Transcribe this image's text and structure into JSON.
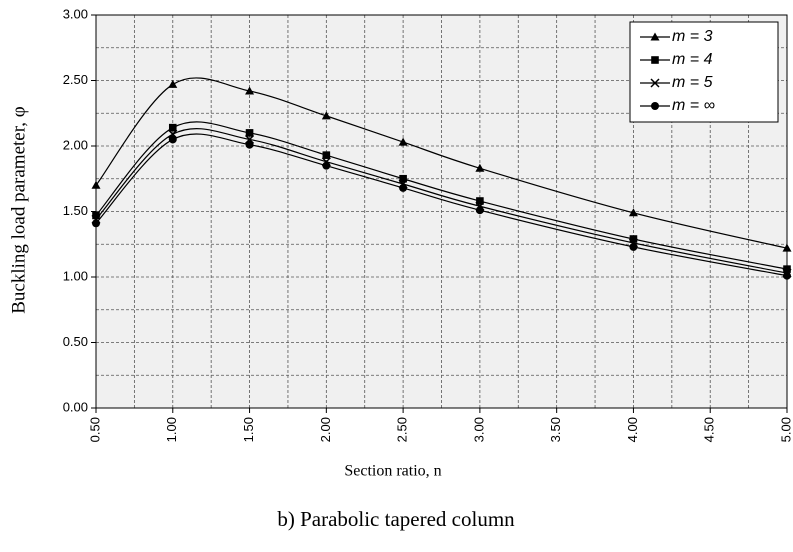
{
  "chart_data": {
    "type": "line",
    "xlabel": "Section ratio, n",
    "ylabel": "Buckling load parameter, φ",
    "caption": "b) Parabolic tapered column",
    "x": [
      0.5,
      1,
      1.5,
      2,
      2.5,
      3,
      4,
      5
    ],
    "series": [
      {
        "name": "m = 3",
        "color": "#000000",
        "marker": "triangle",
        "values": [
          1.7,
          2.47,
          2.42,
          2.23,
          2.03,
          1.83,
          1.49,
          1.22
        ]
      },
      {
        "name": "m = 4",
        "color": "#000000",
        "marker": "square",
        "values": [
          1.47,
          2.14,
          2.1,
          1.93,
          1.75,
          1.58,
          1.29,
          1.06
        ]
      },
      {
        "name": "m = 5",
        "color": "#000000",
        "marker": "x",
        "values": [
          1.44,
          2.09,
          2.05,
          1.88,
          1.71,
          1.54,
          1.26,
          1.03
        ]
      },
      {
        "name": "m = ∞",
        "color": "#000000",
        "marker": "circle",
        "values": [
          1.41,
          2.05,
          2.01,
          1.85,
          1.68,
          1.51,
          1.23,
          1.01
        ]
      }
    ],
    "xlim": [
      0.5,
      5
    ],
    "ylim": [
      0,
      3
    ],
    "xticks": [
      {
        "value": 0.5,
        "label": "0.50"
      },
      {
        "value": 1,
        "label": "1.00"
      },
      {
        "value": 1.5,
        "label": "1.50"
      },
      {
        "value": 2,
        "label": "2.00"
      },
      {
        "value": 2.5,
        "label": "2.50"
      },
      {
        "value": 3,
        "label": "3.00"
      },
      {
        "value": 3.5,
        "label": "3.50"
      },
      {
        "value": 4,
        "label": "4.00"
      },
      {
        "value": 4.5,
        "label": "4.50"
      },
      {
        "value": 5,
        "label": "5.00"
      }
    ],
    "yticks": [
      {
        "value": 0,
        "label": "0.00"
      },
      {
        "value": 0.5,
        "label": "0.50"
      },
      {
        "value": 1,
        "label": "1.00"
      },
      {
        "value": 1.5,
        "label": "1.50"
      },
      {
        "value": 2,
        "label": "2.00"
      },
      {
        "value": 2.5,
        "label": "2.50"
      },
      {
        "value": 3,
        "label": "3.00"
      }
    ],
    "minor_xticks": [
      0.75,
      1.25,
      1.75,
      2.25,
      2.75,
      3.25,
      3.75,
      4.25,
      4.75
    ],
    "minor_yticks": [
      0.25,
      0.75,
      1.25,
      1.75,
      2.25,
      2.75
    ],
    "grid": true,
    "legend": "upper right"
  }
}
